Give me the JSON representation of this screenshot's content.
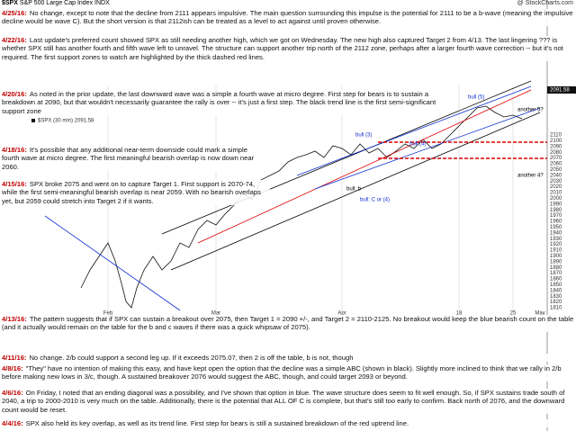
{
  "header": {
    "symbol": "$SPX",
    "name": "S&P 500 Large Cap Index",
    "exchange": "INDX",
    "source": "@ StockCharts.com"
  },
  "legend": "$SPX (30 min) 2091.58",
  "price_tag": "2091.58",
  "right_axis": [
    "2110",
    "2100",
    "2090",
    "2080",
    "2070",
    "2060",
    "2050",
    "2040",
    "2030",
    "2020",
    "2010",
    "2000",
    "1990",
    "1980",
    "1970",
    "1960",
    "1950",
    "1940",
    "1930",
    "1920",
    "1910",
    "1900",
    "1890",
    "1880",
    "1870",
    "1860",
    "1850",
    "1840",
    "1830",
    "1820",
    "1810"
  ],
  "bottom_axis": [
    "Feb",
    "Mar",
    "Apr",
    "18",
    "25",
    "May"
  ],
  "waves": [
    "another 5?",
    "another 4?",
    "bull (5)",
    "bull (4)",
    "bull (3)",
    "bull: C or (4)",
    "bull: b"
  ],
  "notes": [
    {
      "date": "4/25/16:",
      "text": "No change, except to note that the decline from 2111 appears impulsive.  The main question surrounding this impulse is the potential for 2111 to be a b-wave (meaning the impulsive decline would be wave C).  But the short version is that 2112ish can be treated as a level to act against until proven otherwise."
    },
    {
      "date": "4/22/16:",
      "text": "Last update's preferred count showed SPX as still needing another high, which we got on Wednesday.  The new high also captured Target 2 from 4/13.  The last lingering ??? is whether SPX still has another fourth and fifth wave left to unravel.  The structure can support another trip north of the 2112 zone, perhaps after a larger fourth wave correction -- but it's not required.  The first support zones to watch are highlighted by the thick dashed red lines."
    },
    {
      "date": "4/20/16:",
      "text": "As noted in the prior update, the last downward wave was a simple a fourth wave at micro degree.  First step for bears is to sustain a breakdown at 2090, but that wouldn't necessarily guarantee the rally is over -- it's just a first step.  The black trend line is the first semi-significant support zone"
    },
    {
      "date": "4/18/16:",
      "text": "It's possible that any additional near-term downside could mark a simple fourth wave at micro degree.  The first meaningful bearish overlap is now down near 2060."
    },
    {
      "date": "4/15/16:",
      "text": "SPX broke 2075 and went on to capture Target 1.  First support is 2070-74, while the first semi-meaningful bearish overlap is near 2059.  With no bearish overlaps yet, but 2059 could stretch into Target 2 if it wants."
    },
    {
      "date": "4/13/16:",
      "text": "The pattern suggests that if SPX can sustain a breakout over 2075, then Target 1 = 2090 +/-, and Target 2 = 2110-2125.  No breakout would keep the blue bearish count on the table (and it actually would remain on the table for the b and c waves if there was a quick whipsaw of 2075)."
    },
    {
      "date": "4/11/16:",
      "text": "No change.  2/b could support a second leg up.  If it exceeds 2075.07, then 2 is off the table, b is not, though"
    },
    {
      "date": "4/8/16:",
      "text": "\"They\" have no intention of making this easy, and have kept open the option that the decline was a simple ABC (shown in black).  Slightly more inclined to think that we rally in 2/b before making new lows in 3/c, though.  A sustained breakover 2076 would suggest the ABC, though, and could target 2093 or beyond."
    },
    {
      "date": "4/6/16:",
      "text": "On Friday, I noted that an ending diagonal was a possibility, and I've shown that option in blue.  The wave structure does seem to fit well enough.  So, if SPX sustains trade south of 2040, a trip to 2000-2010 is very much on the table.  Additionally, there is the potential that ALL OF C is complete, but that's still too early to confirm.  Back north of 2076, and the downward count would be reset."
    },
    {
      "date": "4/4/16:",
      "text": "SPX also held its key overlap, as well as its trend line.  First step for bears is still a sustained breakdown of the red uptrend line."
    }
  ]
}
